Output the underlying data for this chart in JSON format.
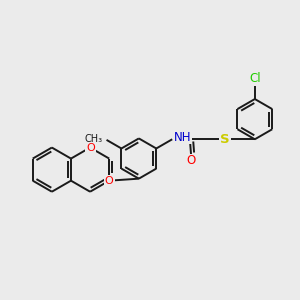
{
  "background_color": "#ebebeb",
  "bond_color": "#1a1a1a",
  "bond_width": 1.4,
  "atom_colors": {
    "O": "#ff0000",
    "N": "#0000cc",
    "S": "#cccc00",
    "Cl": "#22cc00",
    "C": "#1a1a1a",
    "H": "#4444aa"
  },
  "figsize": [
    3.0,
    3.0
  ],
  "dpi": 100,
  "xlim": [
    0,
    12
  ],
  "ylim": [
    0,
    12
  ]
}
